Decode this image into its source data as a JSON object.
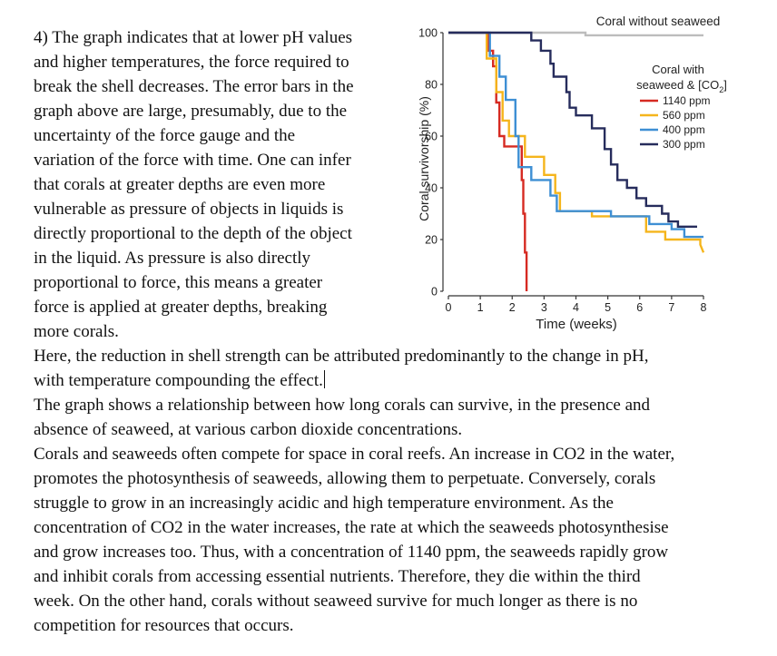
{
  "document": {
    "left_lines": [
      "4) The graph indicates that at lower pH values",
      "and higher temperatures, the force required to",
      "break the shell decreases. The error bars in the",
      "graph above are large, presumably, due to the",
      "uncertainty of the force gauge and the",
      "variation of the force with time. One can infer",
      "that corals at greater depths are even more",
      "vulnerable as pressure of objects in liquids is",
      "directly proportional to the depth of the object",
      "in the liquid. As pressure is also directly",
      "proportional to force, this means a greater",
      "force is applied at greater depths, breaking",
      "more corals."
    ],
    "full_lines": [
      "Here, the reduction in shell strength can be attributed predominantly to the change in pH,",
      "with temperature compounding the effect.",
      "The graph shows a relationship between how long corals can survive, in the presence and",
      "absence of seaweed, at various carbon dioxide concentrations.",
      "Corals and seaweeds often compete for space in coral reefs. An increase in CO2 in the water,",
      "promotes the photosynthesis of seaweeds, allowing them to perpetuate. Conversely, corals",
      "struggle to grow in an increasingly acidic and high temperature environment. As the",
      "concentration of CO2 in the water increases, the rate at which the seaweeds photosynthesise",
      "and grow increases too. Thus, with a concentration of 1140 ppm, the seaweeds rapidly grow",
      "and inhibit corals from accessing essential nutrients. Therefore, they die within the third",
      "week. On the other hand, corals without seaweed survive for much longer as there is no",
      "competition for resources that occurs."
    ]
  },
  "chart_data": {
    "type": "line",
    "step": true,
    "xlabel": "Time (weeks)",
    "ylabel": "Coral survivorship (%)",
    "xlim": [
      0,
      8
    ],
    "ylim": [
      0,
      100
    ],
    "x_ticks": [
      0,
      1,
      2,
      3,
      4,
      5,
      6,
      7,
      8
    ],
    "y_ticks": [
      0,
      20,
      40,
      60,
      80,
      100
    ],
    "annotations": {
      "no_seaweed_label": "Coral without seaweed",
      "with_seaweed_line1": "Coral with",
      "with_seaweed_line2": "seaweed & [CO",
      "with_seaweed_sub": "2",
      "with_seaweed_close": "]"
    },
    "series": [
      {
        "name": "Coral without seaweed",
        "color": "#bdbdbd",
        "legend": false,
        "points": [
          [
            0,
            100
          ],
          [
            4.3,
            100
          ],
          [
            4.3,
            99
          ],
          [
            8,
            99
          ]
        ]
      },
      {
        "name": "1140 ppm",
        "color": "#d62a22",
        "legend": true,
        "points": [
          [
            0,
            100
          ],
          [
            1.25,
            100
          ],
          [
            1.25,
            93
          ],
          [
            1.4,
            93
          ],
          [
            1.4,
            87
          ],
          [
            1.5,
            87
          ],
          [
            1.5,
            73
          ],
          [
            1.6,
            73
          ],
          [
            1.6,
            60
          ],
          [
            1.75,
            60
          ],
          [
            1.75,
            56
          ],
          [
            2.3,
            56
          ],
          [
            2.3,
            43
          ],
          [
            2.35,
            43
          ],
          [
            2.35,
            30
          ],
          [
            2.4,
            30
          ],
          [
            2.4,
            15
          ],
          [
            2.45,
            15
          ],
          [
            2.45,
            0
          ]
        ]
      },
      {
        "name": "560 ppm",
        "color": "#f5b51c",
        "legend": true,
        "points": [
          [
            0,
            100
          ],
          [
            1.2,
            100
          ],
          [
            1.2,
            90
          ],
          [
            1.5,
            90
          ],
          [
            1.5,
            77
          ],
          [
            1.7,
            77
          ],
          [
            1.7,
            66
          ],
          [
            1.9,
            66
          ],
          [
            1.9,
            60
          ],
          [
            2.4,
            60
          ],
          [
            2.4,
            52
          ],
          [
            3.0,
            52
          ],
          [
            3.0,
            45
          ],
          [
            3.35,
            45
          ],
          [
            3.35,
            38
          ],
          [
            3.5,
            38
          ],
          [
            3.5,
            31
          ],
          [
            4.5,
            31
          ],
          [
            4.5,
            29
          ],
          [
            6.2,
            29
          ],
          [
            6.2,
            23
          ],
          [
            6.8,
            23
          ],
          [
            6.8,
            20
          ],
          [
            7.9,
            20
          ],
          [
            7.9,
            18
          ],
          [
            8.0,
            15
          ]
        ]
      },
      {
        "name": "400 ppm",
        "color": "#3e8fd4",
        "legend": true,
        "points": [
          [
            0,
            100
          ],
          [
            1.3,
            100
          ],
          [
            1.3,
            91
          ],
          [
            1.6,
            91
          ],
          [
            1.6,
            83
          ],
          [
            1.8,
            83
          ],
          [
            1.8,
            74
          ],
          [
            2.1,
            74
          ],
          [
            2.1,
            60
          ],
          [
            2.2,
            60
          ],
          [
            2.2,
            48
          ],
          [
            2.6,
            48
          ],
          [
            2.6,
            43
          ],
          [
            3.2,
            43
          ],
          [
            3.2,
            37
          ],
          [
            3.4,
            37
          ],
          [
            3.4,
            31
          ],
          [
            5.1,
            31
          ],
          [
            5.1,
            29
          ],
          [
            6.3,
            29
          ],
          [
            6.3,
            26
          ],
          [
            7.0,
            26
          ],
          [
            7.0,
            24
          ],
          [
            7.4,
            24
          ],
          [
            7.4,
            21
          ],
          [
            8.0,
            21
          ]
        ]
      },
      {
        "name": "300 ppm",
        "color": "#262c5c",
        "legend": true,
        "points": [
          [
            0,
            100
          ],
          [
            2.6,
            100
          ],
          [
            2.6,
            97
          ],
          [
            2.9,
            97
          ],
          [
            2.9,
            93
          ],
          [
            3.2,
            93
          ],
          [
            3.2,
            88
          ],
          [
            3.3,
            88
          ],
          [
            3.3,
            83
          ],
          [
            3.7,
            83
          ],
          [
            3.7,
            77
          ],
          [
            3.8,
            77
          ],
          [
            3.8,
            71
          ],
          [
            4.0,
            71
          ],
          [
            4.0,
            68
          ],
          [
            4.5,
            68
          ],
          [
            4.5,
            63
          ],
          [
            4.9,
            63
          ],
          [
            4.9,
            55
          ],
          [
            5.1,
            55
          ],
          [
            5.1,
            49
          ],
          [
            5.3,
            49
          ],
          [
            5.3,
            43
          ],
          [
            5.6,
            43
          ],
          [
            5.6,
            40
          ],
          [
            5.9,
            40
          ],
          [
            5.9,
            36
          ],
          [
            6.2,
            36
          ],
          [
            6.2,
            33
          ],
          [
            6.7,
            33
          ],
          [
            6.7,
            30
          ],
          [
            6.9,
            30
          ],
          [
            6.9,
            27
          ],
          [
            7.2,
            27
          ],
          [
            7.2,
            25
          ],
          [
            7.8,
            25
          ]
        ]
      }
    ]
  }
}
